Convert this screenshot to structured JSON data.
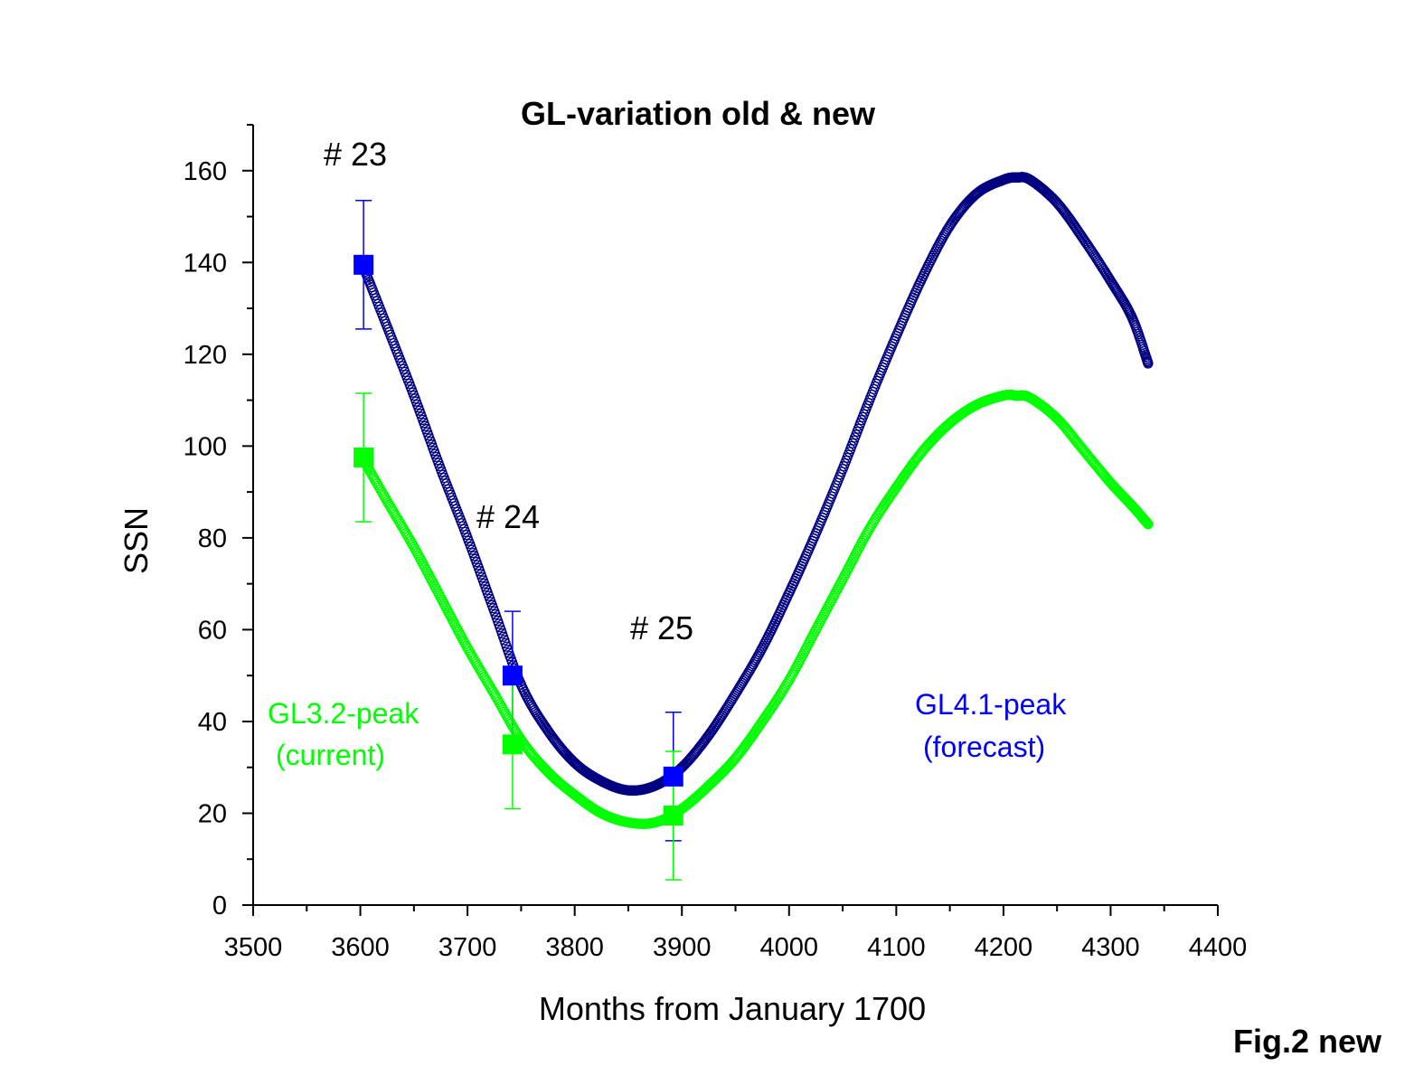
{
  "chart_data": {
    "type": "scatter",
    "title": "GL-variation old & new",
    "xlabel": "Months from January 1700",
    "ylabel": "SSN",
    "xlim": [
      3500,
      4400
    ],
    "ylim": [
      0,
      170
    ],
    "xticks": [
      3500,
      3600,
      3700,
      3800,
      3900,
      4000,
      4100,
      4200,
      4300,
      4400
    ],
    "yticks": [
      0,
      20,
      40,
      60,
      80,
      100,
      120,
      140,
      160
    ],
    "grid": false,
    "colors": {
      "gl41": "#000080",
      "gl32": "#00ff00",
      "gl41_points": "#0000ff",
      "gl32_points": "#00ff00"
    },
    "series": [
      {
        "name": "GL4.1-peak (forecast)",
        "color": "#000080",
        "x": [
          3603,
          3625,
          3650,
          3675,
          3700,
          3725,
          3750,
          3775,
          3800,
          3825,
          3850,
          3875,
          3900,
          3925,
          3950,
          3975,
          4000,
          4025,
          4050,
          4075,
          4100,
          4125,
          4150,
          4175,
          4200,
          4212,
          4225,
          4250,
          4275,
          4300,
          4320,
          4335
        ],
        "y": [
          139,
          126,
          111,
          95,
          80,
          64,
          48,
          38,
          31,
          27,
          25,
          26,
          30,
          37,
          46,
          56,
          68,
          81,
          95,
          110,
          124,
          137,
          148,
          155,
          158,
          158.5,
          158,
          153,
          145,
          136,
          128,
          118
        ]
      },
      {
        "name": "GL3.2-peak (current)",
        "color": "#00ff00",
        "x": [
          3603,
          3625,
          3650,
          3675,
          3700,
          3725,
          3750,
          3775,
          3800,
          3825,
          3850,
          3875,
          3900,
          3925,
          3950,
          3975,
          4000,
          4025,
          4050,
          4075,
          4100,
          4125,
          4150,
          4175,
          4200,
          4212,
          4225,
          4250,
          4275,
          4300,
          4320,
          4335
        ],
        "y": [
          97,
          88,
          78,
          67,
          56,
          46,
          36,
          29,
          24,
          20,
          18,
          18,
          21,
          26,
          32,
          40,
          49,
          60,
          71,
          82,
          91,
          99,
          105,
          109,
          111,
          111,
          110.5,
          106,
          99,
          92,
          87,
          83
        ]
      }
    ],
    "points": [
      {
        "label": "# 23",
        "x": 3603,
        "gl41": {
          "y": 139.5,
          "err": 14
        },
        "gl32": {
          "y": 97.5,
          "err": 14
        }
      },
      {
        "label": "# 24",
        "x": 3742,
        "gl41": {
          "y": 50,
          "err": 14
        },
        "gl32": {
          "y": 35,
          "err": 14
        }
      },
      {
        "label": "# 25",
        "x": 3892,
        "gl41": {
          "y": 28,
          "err": 14
        },
        "gl32": {
          "y": 19.5,
          "err": 14
        }
      }
    ],
    "annotations": {
      "c23": "# 23",
      "c24": "# 24",
      "c25": "# 25",
      "gl32_line1": "GL3.2-peak",
      "gl32_line2": "(current)",
      "gl41_line1": "GL4.1-peak",
      "gl41_line2": "(forecast)"
    },
    "figure_label": "Fig.2 new"
  }
}
